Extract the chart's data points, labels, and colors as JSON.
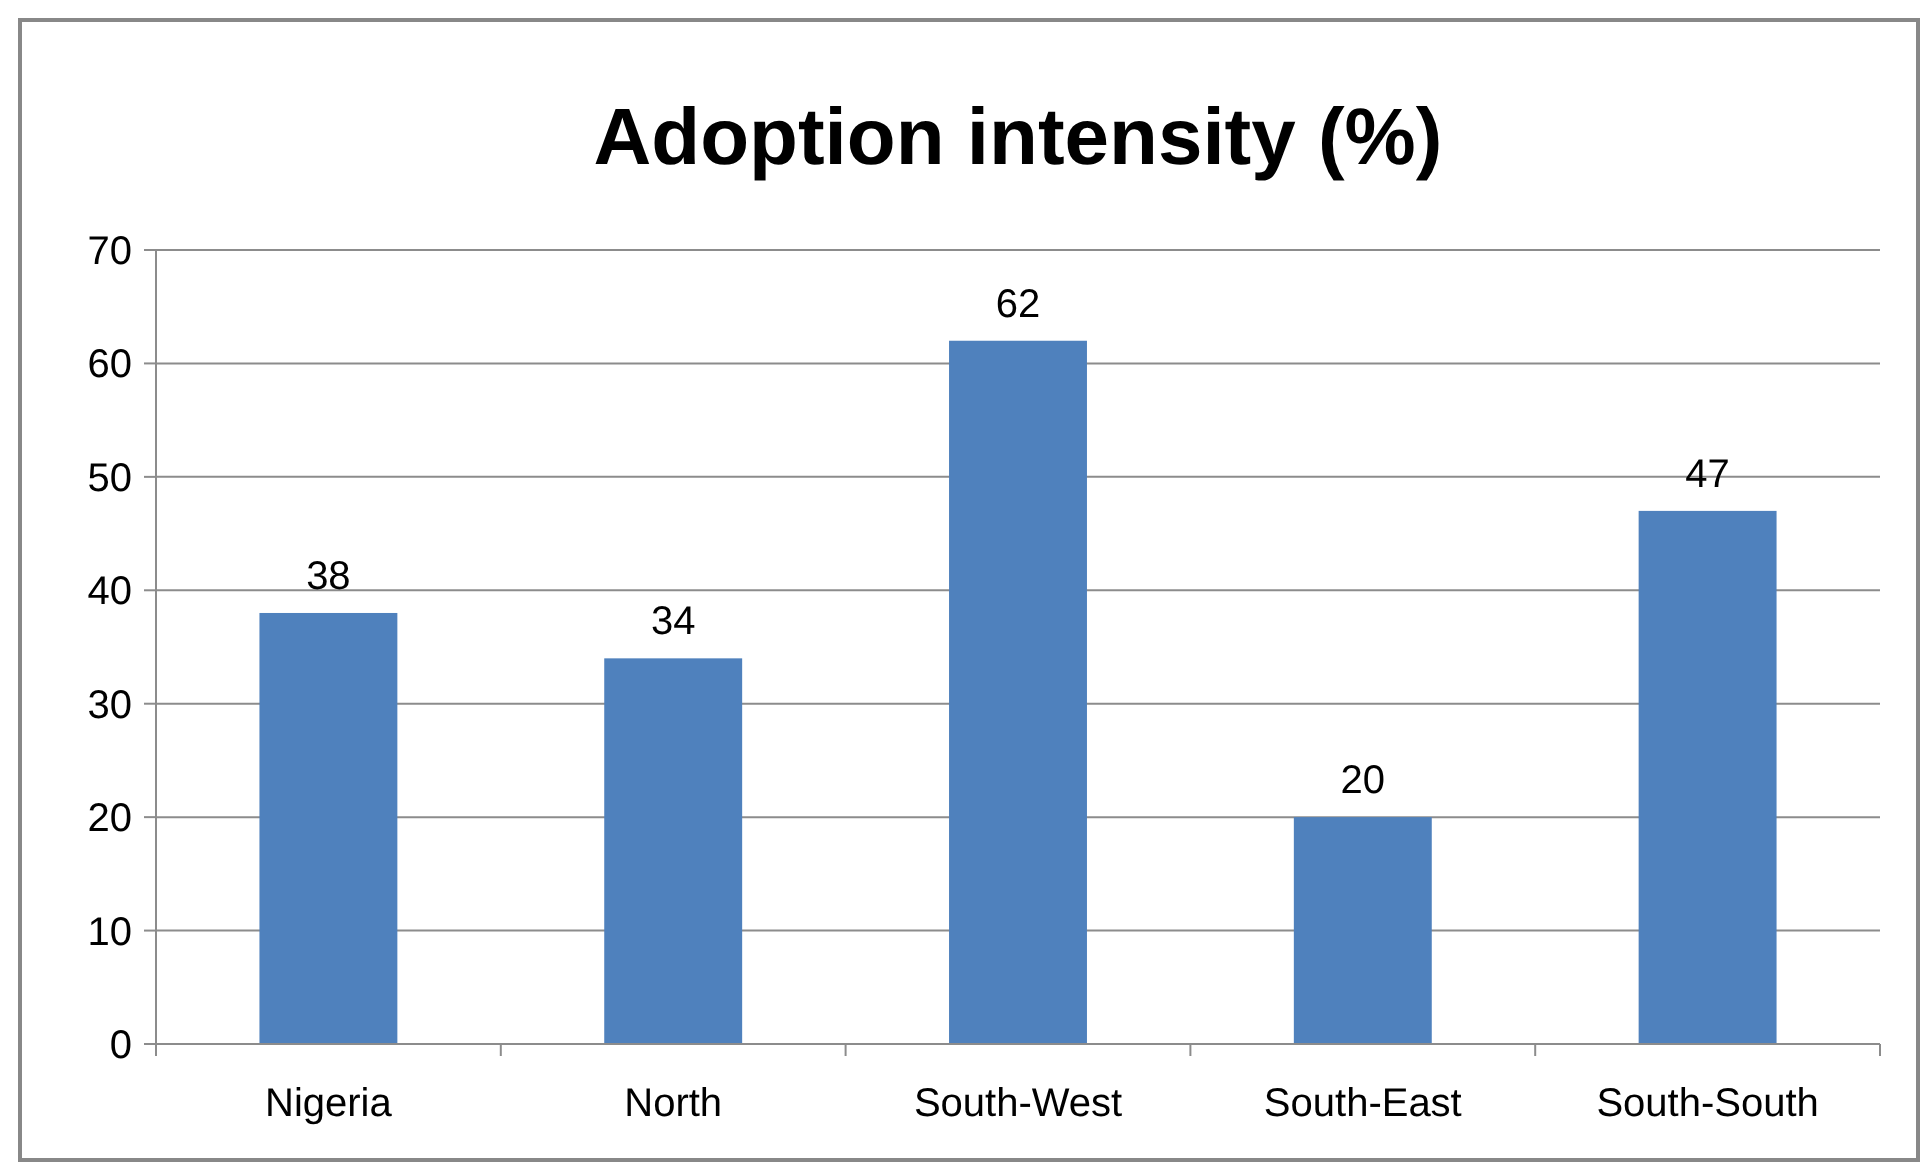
{
  "chart_data": {
    "type": "bar",
    "title": "Adoption intensity (%)",
    "categories": [
      "Nigeria",
      "North",
      "South-West",
      "South-East",
      "South-South"
    ],
    "values": [
      38,
      34,
      62,
      20,
      47
    ],
    "color": "#4f81bd",
    "ylim": [
      0,
      70
    ],
    "yticks": [
      0,
      10,
      20,
      30,
      40,
      50,
      60,
      70
    ],
    "grid": "y",
    "data_labels": true
  }
}
